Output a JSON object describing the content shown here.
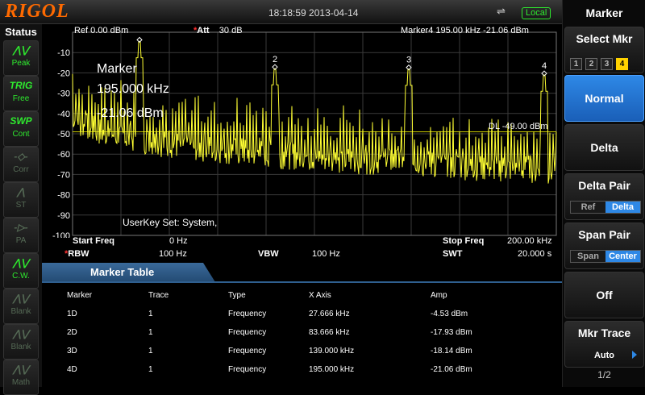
{
  "top": {
    "logo": "RIGOL",
    "datetime": "18:18:59 2013-04-14",
    "usb_icon": "usb-icon",
    "mode": "Local"
  },
  "status": {
    "title": "Status",
    "items": [
      {
        "icon": "peak-icon",
        "glyph": "⋀⋁",
        "label": "Peak",
        "state": "on"
      },
      {
        "icon": "trig-icon",
        "glyph": "TRIG",
        "label": "Free",
        "state": "on"
      },
      {
        "icon": "sweep-icon",
        "glyph": "SWP",
        "label": "Cont",
        "state": "on"
      },
      {
        "icon": "correction-icon",
        "glyph": "-◇-",
        "label": "Corr",
        "state": "off"
      },
      {
        "icon": "stat-icon",
        "glyph": "⋀",
        "label": "ST",
        "state": "off"
      },
      {
        "icon": "preamp-icon",
        "glyph": "-▷-",
        "label": "PA",
        "state": "off"
      },
      {
        "icon": "clear-write-icon",
        "glyph": "⋀⋁",
        "label": "C.W.",
        "state": "on"
      },
      {
        "icon": "blank-icon",
        "glyph": "⋀⋁",
        "label": "Blank",
        "state": "off"
      },
      {
        "icon": "blank-icon",
        "glyph": "⋀⋁",
        "label": "Blank",
        "state": "off"
      },
      {
        "icon": "math-icon",
        "glyph": "⋀⋁",
        "label": "Math",
        "state": "off"
      }
    ]
  },
  "header": {
    "ref": "Ref  0.00 dBm",
    "att_label": "Att",
    "att_value": "30 dB",
    "marker": "Marker4   195.00 kHz   -21.06 dBm"
  },
  "marker_readout": {
    "line1": "Marker",
    "line2": "195.000 kHz",
    "line3": "-21.06 dBm"
  },
  "display_line": "DL -49.00 dBm",
  "userkey": "UserKey Set:   System,",
  "chart_data": {
    "type": "line",
    "ylim": [
      -100,
      0
    ],
    "yticks": [
      "-10",
      "-20",
      "-30",
      "-40",
      "-50",
      "-60",
      "-70",
      "-80",
      "-90",
      "-100"
    ],
    "xlim": [
      0,
      200
    ],
    "x_unit": "kHz",
    "display_line_dbm": -49,
    "noise_floor_start_dbm": -38,
    "noise_floor_end_dbm": -68,
    "markers": [
      {
        "id": "1",
        "x_khz": 27.666,
        "amp_dbm": -4.53
      },
      {
        "id": "2",
        "x_khz": 83.666,
        "amp_dbm": -17.93
      },
      {
        "id": "3",
        "x_khz": 139.0,
        "amp_dbm": -18.14
      },
      {
        "id": "4",
        "x_khz": 195.0,
        "amp_dbm": -21.06
      }
    ],
    "trace_color": "#ffff33",
    "grid": true
  },
  "params": {
    "start_label": "Start Freq",
    "start_value": "0 Hz",
    "stop_label": "Stop Freq",
    "stop_value": "200.00 kHz",
    "rbw_label": "RBW",
    "rbw_value": "100 Hz",
    "vbw_label": "VBW",
    "vbw_value": "100 Hz",
    "swt_label": "SWT",
    "swt_value": "20.000 s"
  },
  "marker_table": {
    "title": "Marker Table",
    "columns": [
      "Marker",
      "Trace",
      "Type",
      "X Axis",
      "Amp"
    ],
    "rows": [
      [
        "1D",
        "1",
        "Frequency",
        "27.666 kHz",
        "-4.53 dBm"
      ],
      [
        "2D",
        "1",
        "Frequency",
        "83.666 kHz",
        "-17.93 dBm"
      ],
      [
        "3D",
        "1",
        "Frequency",
        "139.000 kHz",
        "-18.14 dBm"
      ],
      [
        "4D",
        "1",
        "Frequency",
        "195.000 kHz",
        "-21.06 dBm"
      ]
    ]
  },
  "softkeys": {
    "title": "Marker",
    "select_mkr": "Select Mkr",
    "mkr_numbers": [
      "1",
      "2",
      "3",
      "4"
    ],
    "selected_mkr": "4",
    "normal": "Normal",
    "delta": "Delta",
    "delta_pair": "Delta Pair",
    "delta_pair_opts": [
      "Ref",
      "Delta"
    ],
    "span_pair": "Span Pair",
    "span_pair_opts": [
      "Span",
      "Center"
    ],
    "off": "Off",
    "mkr_trace": "Mkr Trace",
    "mkr_trace_value": "Auto",
    "page": "1/2"
  }
}
